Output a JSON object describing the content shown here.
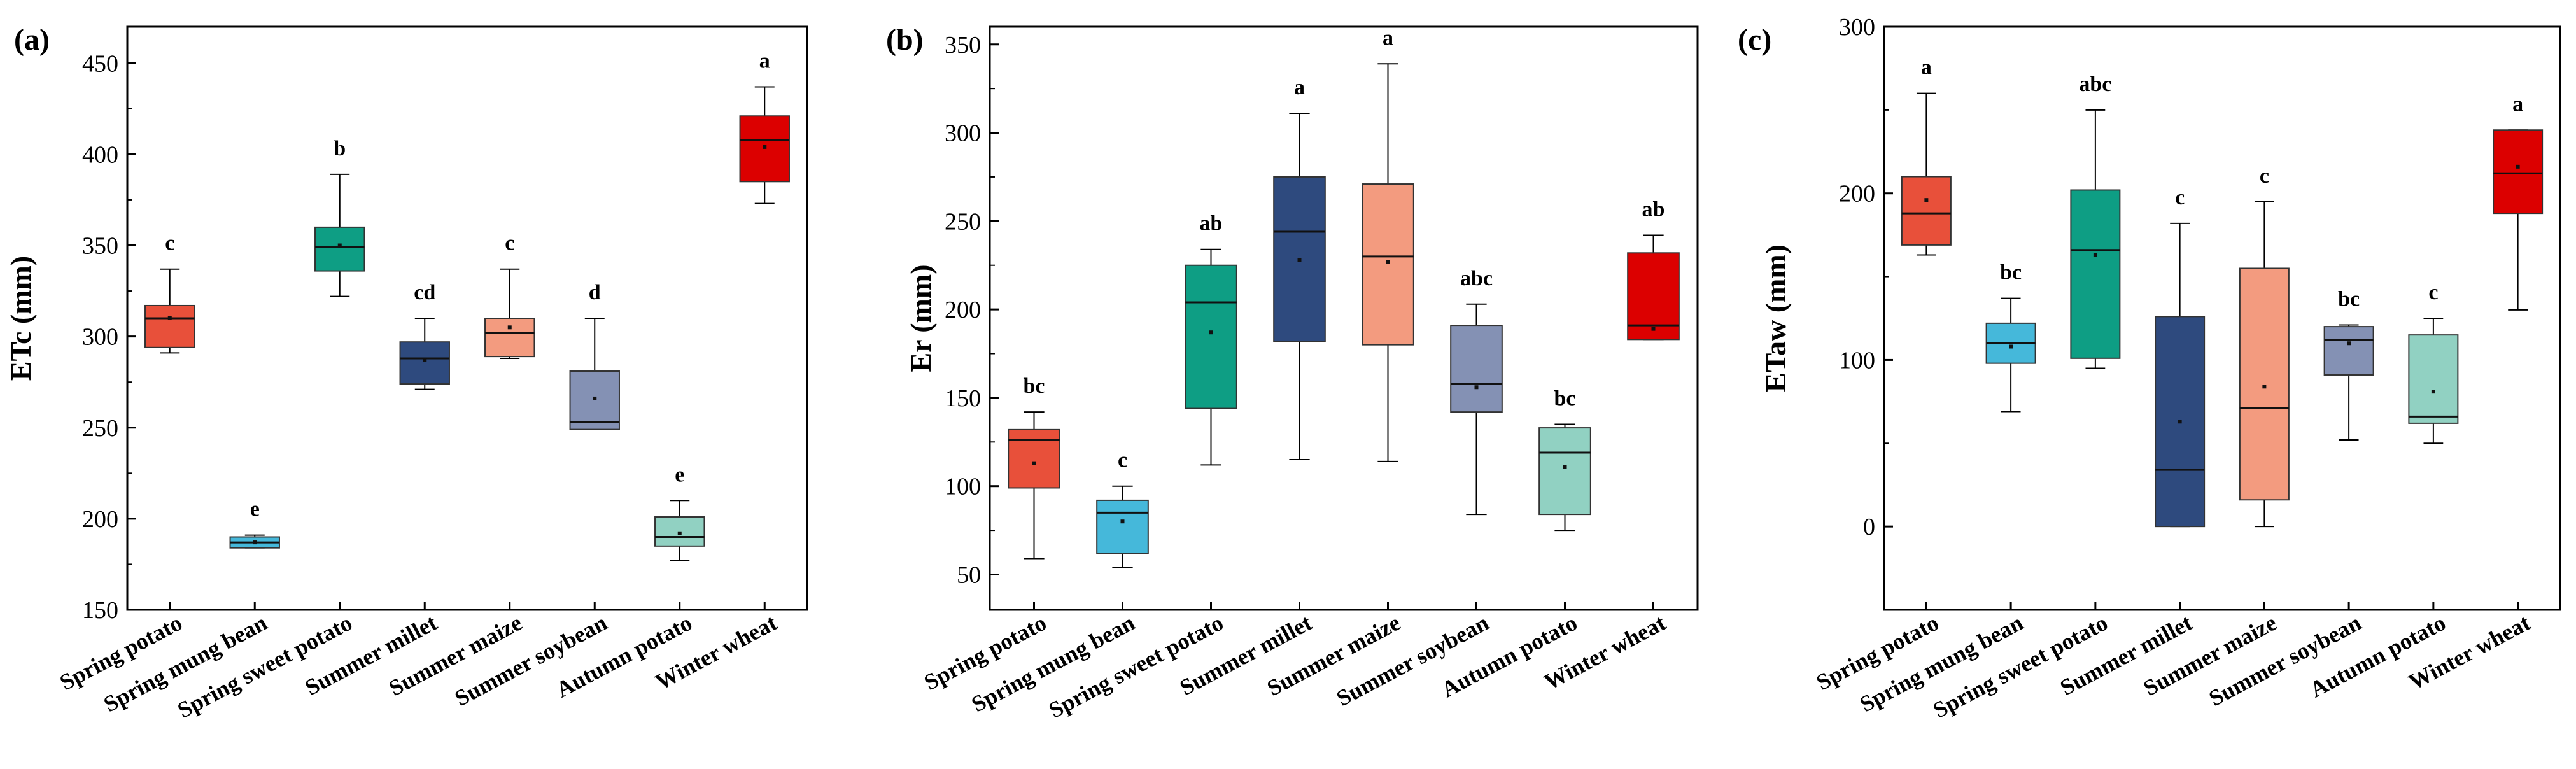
{
  "chart_data": [
    {
      "panel": "(a)",
      "type": "box",
      "ylabel": "ETc (mm)",
      "ylim": [
        150,
        470
      ],
      "yticks": [
        150,
        200,
        250,
        300,
        350,
        400,
        450
      ],
      "categories": [
        "Spring potato",
        "Spring mung bean",
        "Spring sweet potato",
        "Summer millet",
        "Summer maize",
        "Summer soybean",
        "Autumn potato",
        "Winter wheat"
      ],
      "colors": [
        "#E8503A",
        "#45B8DA",
        "#0E9E84",
        "#2E4A7E",
        "#F39B7F",
        "#8491B4",
        "#91D1C2",
        "#DC0000"
      ],
      "boxes": [
        {
          "min": 291,
          "q1": 294,
          "median": 310,
          "q3": 317,
          "max": 337,
          "mean": 310,
          "letter": "c"
        },
        {
          "min": 184,
          "q1": 184,
          "median": 187,
          "q3": 190,
          "max": 191,
          "mean": 187,
          "letter": "e"
        },
        {
          "min": 322,
          "q1": 336,
          "median": 349,
          "q3": 360,
          "max": 389,
          "mean": 350,
          "letter": "b"
        },
        {
          "min": 271,
          "q1": 274,
          "median": 288,
          "q3": 297,
          "max": 310,
          "mean": 287,
          "letter": "cd"
        },
        {
          "min": 288,
          "q1": 289,
          "median": 302,
          "q3": 310,
          "max": 337,
          "mean": 305,
          "letter": "c"
        },
        {
          "min": 249,
          "q1": 249,
          "median": 253,
          "q3": 281,
          "max": 310,
          "mean": 266,
          "letter": "d"
        },
        {
          "min": 177,
          "q1": 185,
          "median": 190,
          "q3": 201,
          "max": 210,
          "mean": 192,
          "letter": "e"
        },
        {
          "min": 373,
          "q1": 385,
          "median": 408,
          "q3": 421,
          "max": 437,
          "mean": 404,
          "letter": "a"
        }
      ]
    },
    {
      "panel": "(b)",
      "type": "box",
      "ylabel": "Er (mm)",
      "ylim": [
        30,
        360
      ],
      "yticks": [
        50,
        100,
        150,
        200,
        250,
        300,
        350
      ],
      "categories": [
        "Spring potato",
        "Spring mung bean",
        "Spring sweet potato",
        "Summer millet",
        "Summer maize",
        "Summer soybean",
        "Autumn potato",
        "Winter wheat"
      ],
      "colors": [
        "#E8503A",
        "#45B8DA",
        "#0E9E84",
        "#2E4A7E",
        "#F39B7F",
        "#8491B4",
        "#91D1C2",
        "#DC0000"
      ],
      "boxes": [
        {
          "min": 59,
          "q1": 99,
          "median": 126,
          "q3": 132,
          "max": 142,
          "mean": 113,
          "letter": "bc"
        },
        {
          "min": 54,
          "q1": 62,
          "median": 85,
          "q3": 92,
          "max": 100,
          "mean": 80,
          "letter": "c"
        },
        {
          "min": 112,
          "q1": 144,
          "median": 204,
          "q3": 225,
          "max": 234,
          "mean": 187,
          "letter": "ab"
        },
        {
          "min": 115,
          "q1": 182,
          "median": 244,
          "q3": 275,
          "max": 311,
          "mean": 228,
          "letter": "a"
        },
        {
          "min": 114,
          "q1": 180,
          "median": 230,
          "q3": 271,
          "max": 339,
          "mean": 227,
          "letter": "a"
        },
        {
          "min": 84,
          "q1": 142,
          "median": 158,
          "q3": 191,
          "max": 203,
          "mean": 156,
          "letter": "abc"
        },
        {
          "min": 75,
          "q1": 84,
          "median": 119,
          "q3": 133,
          "max": 135,
          "mean": 111,
          "letter": "bc"
        },
        {
          "min": 183,
          "q1": 183,
          "median": 191,
          "q3": 232,
          "max": 242,
          "mean": 189,
          "letter": "ab"
        }
      ]
    },
    {
      "panel": "(c)",
      "type": "box",
      "ylabel": "ETaw (mm)",
      "ylim": [
        -50,
        300
      ],
      "yticks": [
        0,
        100,
        200,
        300
      ],
      "categories": [
        "Spring potato",
        "Spring mung bean",
        "Spring sweet potato",
        "Summer millet",
        "Summer maize",
        "Summer soybean",
        "Autumn potato",
        "Winter wheat"
      ],
      "colors": [
        "#E8503A",
        "#45B8DA",
        "#0E9E84",
        "#2E4A7E",
        "#F39B7F",
        "#8491B4",
        "#91D1C2",
        "#DC0000"
      ],
      "boxes": [
        {
          "min": 163,
          "q1": 169,
          "median": 188,
          "q3": 210,
          "max": 260,
          "mean": 196,
          "letter": "a"
        },
        {
          "min": 69,
          "q1": 98,
          "median": 110,
          "q3": 122,
          "max": 137,
          "mean": 108,
          "letter": "bc"
        },
        {
          "min": 95,
          "q1": 101,
          "median": 166,
          "q3": 202,
          "max": 250,
          "mean": 163,
          "letter": "abc"
        },
        {
          "min": 0,
          "q1": 0,
          "median": 34,
          "q3": 126,
          "max": 182,
          "mean": 63,
          "letter": "c"
        },
        {
          "min": 0,
          "q1": 16,
          "median": 71,
          "q3": 155,
          "max": 195,
          "mean": 84,
          "letter": "c"
        },
        {
          "min": 52,
          "q1": 91,
          "median": 112,
          "q3": 120,
          "max": 121,
          "mean": 110,
          "letter": "bc"
        },
        {
          "min": 50,
          "q1": 62,
          "median": 66,
          "q3": 115,
          "max": 125,
          "mean": 81,
          "letter": "c"
        },
        {
          "min": 130,
          "q1": 188,
          "median": 212,
          "q3": 238,
          "max": 238,
          "mean": 216,
          "letter": "a"
        }
      ]
    }
  ]
}
